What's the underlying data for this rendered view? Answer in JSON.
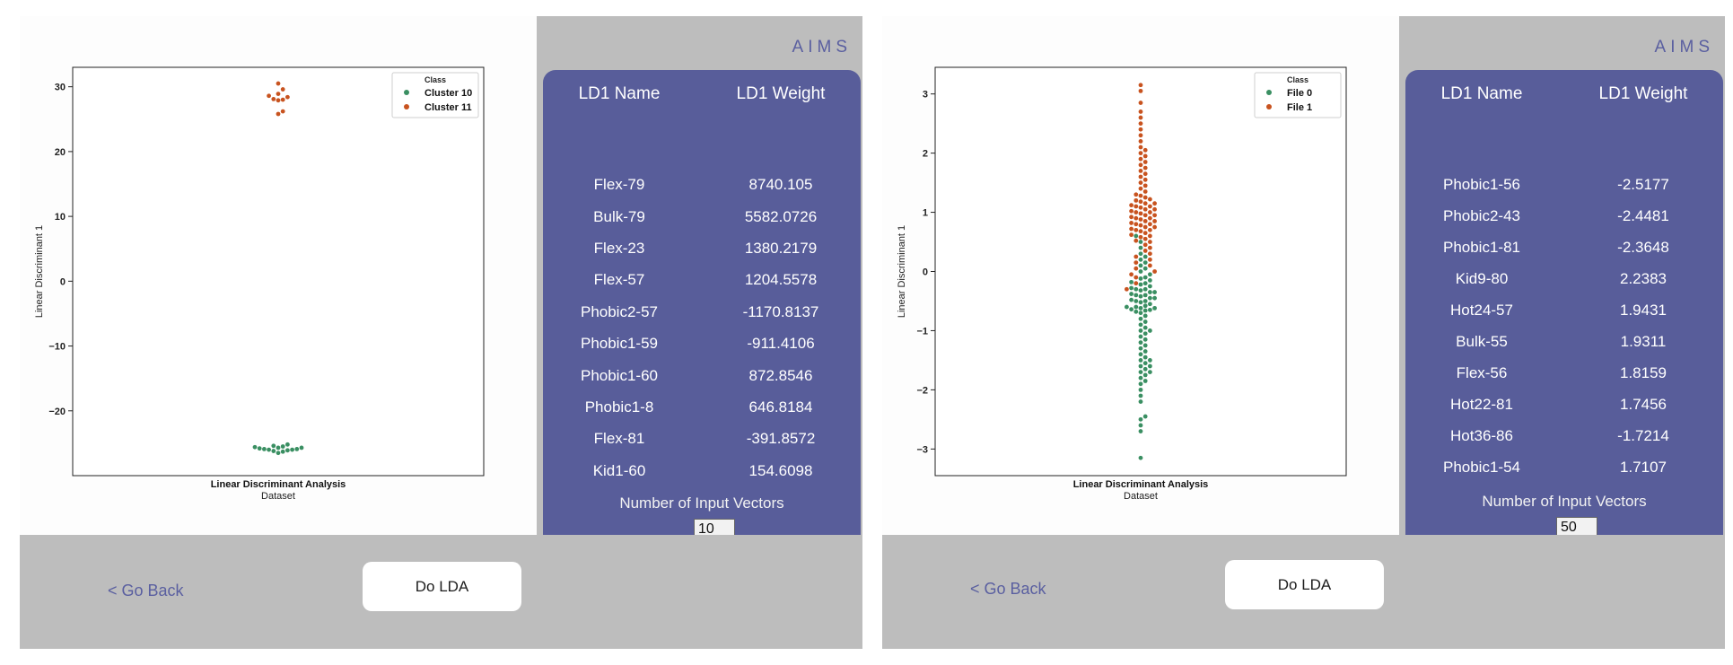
{
  "panels": [
    {
      "brand": "AIMS",
      "table_header": {
        "name": "LD1 Name",
        "weight": "LD1 Weight"
      },
      "rows": [
        {
          "name": "Flex-79",
          "weight": "8740.105"
        },
        {
          "name": "Bulk-79",
          "weight": "5582.0726"
        },
        {
          "name": "Flex-23",
          "weight": "1380.2179"
        },
        {
          "name": "Flex-57",
          "weight": "1204.5578"
        },
        {
          "name": "Phobic2-57",
          "weight": "-1170.8137"
        },
        {
          "name": "Phobic1-59",
          "weight": "-911.4106"
        },
        {
          "name": "Phobic1-60",
          "weight": "872.8546"
        },
        {
          "name": "Phobic1-8",
          "weight": "646.8184"
        },
        {
          "name": "Flex-81",
          "weight": "-391.8572"
        },
        {
          "name": "Kid1-60",
          "weight": "154.6098"
        }
      ],
      "num_vectors_label": "Number of Input Vectors",
      "num_vectors_value": "10",
      "go_back_label": "< Go Back",
      "do_lda_label": "Do LDA",
      "colors": {
        "series_a": "#3a8f62",
        "series_b": "#c8531f",
        "card": "#585d9a",
        "panel": "#bdbdbd"
      },
      "chart_data": {
        "type": "scatter",
        "ylabel": "Linear Discriminant 1",
        "xlabel": "Linear Discriminant Analysis",
        "xtick": "Dataset",
        "ylim": [
          -30,
          33
        ],
        "yticks": [
          "30",
          "20",
          "10",
          "0",
          "−10",
          "−20"
        ],
        "ytick_values": [
          30,
          20,
          10,
          0,
          -10,
          -20
        ],
        "legend_title": "Class",
        "legend_position": "top-right",
        "series": [
          {
            "name": "Cluster 10",
            "color": "#3a8f62",
            "values": [
              -25.2,
              -25.5,
              -25.7,
              -25.9,
              -26.0,
              -26.1,
              -26.3,
              -25.6,
              -25.8,
              -26.0,
              -25.4,
              -26.2,
              -25.9,
              -25.7,
              -26.5
            ]
          },
          {
            "name": "Cluster 11",
            "color": "#c8531f",
            "values": [
              30.5,
              29.6,
              28.9,
              28.6,
              28.4,
              28.1,
              27.9,
              26.2,
              25.8,
              28.0
            ]
          }
        ]
      }
    },
    {
      "brand": "AIMS",
      "table_header": {
        "name": "LD1 Name",
        "weight": "LD1 Weight"
      },
      "rows": [
        {
          "name": "Phobic1-56",
          "weight": "-2.5177"
        },
        {
          "name": "Phobic2-43",
          "weight": "-2.4481"
        },
        {
          "name": "Phobic1-81",
          "weight": "-2.3648"
        },
        {
          "name": "Kid9-80",
          "weight": "2.2383"
        },
        {
          "name": "Hot24-57",
          "weight": "1.9431"
        },
        {
          "name": "Bulk-55",
          "weight": "1.9311"
        },
        {
          "name": "Flex-56",
          "weight": "1.8159"
        },
        {
          "name": "Hot22-81",
          "weight": "1.7456"
        },
        {
          "name": "Hot36-86",
          "weight": "-1.7214"
        },
        {
          "name": "Phobic1-54",
          "weight": "1.7107"
        }
      ],
      "num_vectors_label": "Number of Input Vectors",
      "num_vectors_value": "50",
      "go_back_label": "< Go Back",
      "do_lda_label": "Do LDA",
      "colors": {
        "series_a": "#3a8f62",
        "series_b": "#c8531f",
        "card": "#585d9a",
        "panel": "#bdbdbd"
      },
      "chart_data": {
        "type": "scatter",
        "ylabel": "Linear Discriminant 1",
        "xlabel": "Linear Discriminant Analysis",
        "xtick": "Dataset",
        "ylim": [
          -3.45,
          3.45
        ],
        "yticks": [
          "3",
          "2",
          "1",
          "0",
          "−1",
          "−2",
          "−3"
        ],
        "ytick_values": [
          3,
          2,
          1,
          0,
          -1,
          -2,
          -3
        ],
        "legend_title": "Class",
        "legend_position": "top-right",
        "series": [
          {
            "name": "File 0",
            "color": "#3a8f62",
            "values": [
              -3.15,
              -2.7,
              -2.6,
              -2.5,
              -2.45,
              -2.2,
              -2.1,
              -2.0,
              -1.9,
              -1.85,
              -1.8,
              -1.75,
              -1.7,
              -1.65,
              -1.6,
              -1.55,
              -1.5,
              -1.45,
              -1.4,
              -1.35,
              -1.3,
              -1.25,
              -1.2,
              -1.15,
              -1.1,
              -1.05,
              -1.0,
              -0.95,
              -0.9,
              -0.85,
              -0.8,
              -0.75,
              -0.7,
              -0.68,
              -0.65,
              -0.62,
              -0.6,
              -0.58,
              -0.55,
              -0.52,
              -0.5,
              -0.48,
              -0.45,
              -0.42,
              -0.4,
              -0.38,
              -0.35,
              -0.32,
              -0.3,
              -0.28,
              -0.25,
              -0.22,
              -0.2,
              -0.18,
              -0.15,
              -0.12,
              -0.1,
              -0.05,
              0.0,
              0.05,
              0.1,
              0.15,
              0.2,
              0.25,
              0.3,
              0.4,
              0.5,
              0.6,
              -0.6,
              -0.62,
              -0.64,
              -0.66,
              -0.3,
              -0.35,
              -0.4,
              -0.45,
              -0.5,
              -1.0,
              -1.5,
              -1.6,
              -1.7
            ]
          },
          {
            "name": "File 1",
            "color": "#c8531f",
            "values": [
              3.15,
              3.05,
              2.85,
              2.7,
              2.6,
              2.5,
              2.4,
              2.3,
              2.2,
              2.1,
              2.05,
              2.0,
              1.95,
              1.9,
              1.85,
              1.8,
              1.75,
              1.7,
              1.65,
              1.6,
              1.55,
              1.5,
              1.45,
              1.4,
              1.35,
              1.3,
              1.28,
              1.25,
              1.22,
              1.2,
              1.18,
              1.15,
              1.12,
              1.1,
              1.08,
              1.05,
              1.02,
              1.0,
              0.98,
              0.95,
              0.92,
              0.9,
              0.88,
              0.85,
              0.82,
              0.8,
              0.78,
              0.75,
              0.72,
              0.7,
              0.68,
              0.65,
              0.62,
              0.6,
              0.58,
              0.55,
              0.52,
              0.5,
              0.45,
              0.4,
              0.35,
              0.3,
              0.25,
              0.2,
              0.15,
              0.1,
              0.05,
              0.0,
              -0.05,
              -0.1,
              -0.2,
              -0.3,
              0.9,
              0.95,
              1.0,
              1.05,
              0.85,
              0.8,
              1.1,
              1.15,
              0.7,
              0.75
            ]
          }
        ]
      }
    }
  ]
}
